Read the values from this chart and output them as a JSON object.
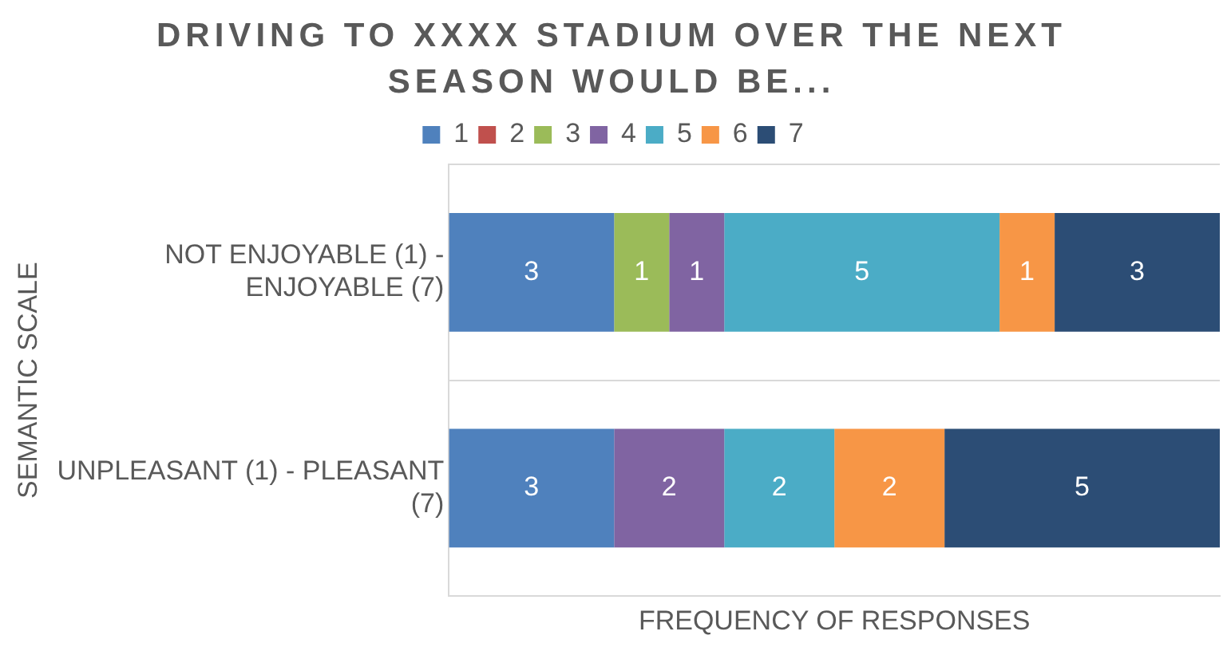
{
  "chart_data": {
    "type": "bar",
    "orientation": "horizontal",
    "stacked": true,
    "title": "DRIVING TO XXXX STADIUM OVER THE NEXT SEASON WOULD BE...",
    "xlabel": "FREQUENCY OF RESPONSES",
    "ylabel": "SEMANTIC SCALE",
    "categories": [
      "NOT ENJOYABLE (1) - ENJOYABLE (7)",
      "UNPLEASANT (1) - PLEASANT (7)"
    ],
    "xlim": [
      0,
      14
    ],
    "series": [
      {
        "name": "1",
        "color": "#4f81bd",
        "values": [
          3,
          3
        ]
      },
      {
        "name": "2",
        "color": "#c0504d",
        "values": [
          null,
          null
        ]
      },
      {
        "name": "3",
        "color": "#9bbb59",
        "values": [
          1,
          null
        ]
      },
      {
        "name": "4",
        "color": "#8064a2",
        "values": [
          1,
          2
        ]
      },
      {
        "name": "5",
        "color": "#4bacc6",
        "values": [
          5,
          2
        ]
      },
      {
        "name": "6",
        "color": "#f79646",
        "values": [
          1,
          2
        ]
      },
      {
        "name": "7",
        "color": "#2c4d75",
        "values": [
          3,
          5
        ]
      }
    ],
    "data_labels": true,
    "legend": "top",
    "grid": "y",
    "tick_labels": "y"
  }
}
